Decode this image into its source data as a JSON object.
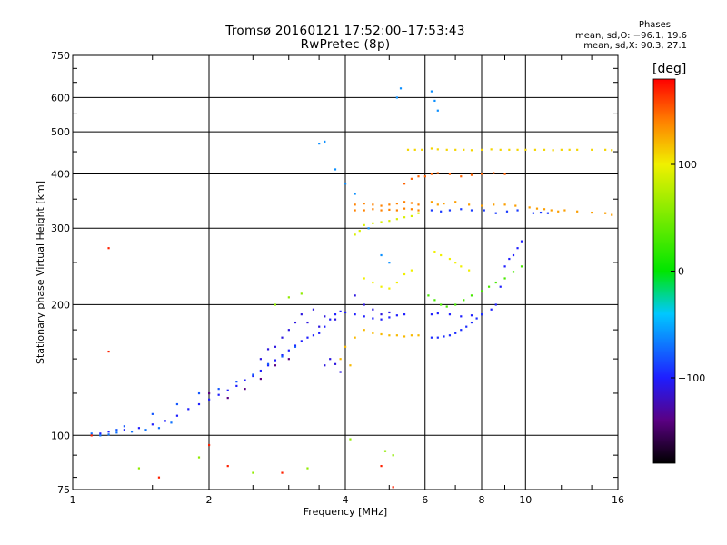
{
  "chart_data": {
    "type": "scatter",
    "title": "Tromsø 20160121 17:52:00–17:53:43",
    "subtitle": "RwPretec (8p)",
    "xlabel": "Frequency [MHz]",
    "ylabel": "Stationary phase Virtual Height [km]",
    "x_scale": "log",
    "y_scale": "log",
    "xlim": [
      1,
      16
    ],
    "ylim": [
      75,
      750
    ],
    "x_ticks": [
      1,
      2,
      4,
      6,
      8,
      10,
      16
    ],
    "x_tick_labels": [
      "1",
      "2",
      "4",
      "6",
      "8",
      "10",
      "16"
    ],
    "y_ticks": [
      75,
      100,
      200,
      300,
      400,
      500,
      600,
      750
    ],
    "y_tick_labels": [
      "75",
      "100",
      "200",
      "300",
      "400",
      "500",
      "600",
      "750"
    ],
    "x_gridlines": [
      2,
      4,
      6,
      8,
      10
    ],
    "y_gridlines": [
      100,
      200,
      300,
      400,
      500,
      600
    ],
    "phase_stats": {
      "heading": "Phases",
      "line_O": "mean, sd,O: −96.1, 19.6",
      "line_X": "mean, sd,X:  90.3, 27.1"
    },
    "colorbar": {
      "unit": "[deg]",
      "range": [
        -180,
        180
      ],
      "tick_labels": [
        "100",
        "0",
        "−100"
      ],
      "tick_values": [
        100,
        0,
        -100
      ],
      "colors": [
        "#000000",
        "#5a0082",
        "#1e1eff",
        "#00c8ff",
        "#00e600",
        "#f0f000",
        "#ff8200",
        "#ff0000"
      ]
    },
    "series": [
      {
        "points": [
          [
            1.15,
            101
          ],
          [
            1.2,
            102
          ],
          [
            1.3,
            103
          ],
          [
            1.4,
            104
          ],
          [
            1.5,
            106
          ],
          [
            1.6,
            108
          ],
          [
            1.7,
            111
          ],
          [
            1.8,
            115
          ],
          [
            1.9,
            118
          ],
          [
            2.0,
            121
          ],
          [
            2.1,
            124
          ],
          [
            2.2,
            127
          ],
          [
            2.3,
            130
          ],
          [
            2.4,
            134
          ],
          [
            2.5,
            137
          ],
          [
            2.6,
            141
          ],
          [
            2.7,
            145
          ],
          [
            2.8,
            149
          ],
          [
            2.9,
            153
          ],
          [
            3.0,
            157
          ],
          [
            3.1,
            161
          ],
          [
            3.2,
            165
          ],
          [
            3.3,
            168
          ],
          [
            3.4,
            170
          ],
          [
            3.5,
            172
          ],
          [
            3.6,
            178
          ],
          [
            3.7,
            185
          ],
          [
            3.8,
            190
          ],
          [
            3.9,
            193
          ],
          [
            4.0,
            192
          ],
          [
            4.2,
            190
          ],
          [
            4.4,
            188
          ],
          [
            4.6,
            186
          ],
          [
            4.8,
            185
          ],
          [
            5.0,
            187
          ],
          [
            5.2,
            189
          ],
          [
            5.4,
            190
          ],
          [
            6.2,
            190
          ],
          [
            6.4,
            191
          ],
          [
            6.8,
            190
          ],
          [
            7.2,
            188
          ],
          [
            7.6,
            189
          ],
          [
            8.0,
            190
          ],
          [
            8.4,
            195
          ],
          [
            8.6,
            200
          ],
          [
            8.8,
            220
          ],
          [
            9.0,
            245
          ],
          [
            9.2,
            255
          ],
          [
            9.4,
            260
          ],
          [
            9.6,
            270
          ],
          [
            9.8,
            280
          ]
        ],
        "phase": -100
      },
      {
        "points": [
          [
            3.4,
            195
          ],
          [
            3.6,
            188
          ],
          [
            3.8,
            185
          ],
          [
            3.5,
            178
          ],
          [
            3.3,
            182
          ],
          [
            3.2,
            190
          ],
          [
            3.1,
            182
          ],
          [
            3.0,
            175
          ],
          [
            2.9,
            168
          ],
          [
            2.8,
            160
          ],
          [
            2.7,
            158
          ],
          [
            2.6,
            150
          ],
          [
            3.7,
            150
          ],
          [
            3.8,
            146
          ],
          [
            3.9,
            140
          ],
          [
            3.6,
            145
          ],
          [
            4.2,
            210
          ],
          [
            4.4,
            200
          ],
          [
            4.6,
            195
          ],
          [
            4.8,
            190
          ],
          [
            5.0,
            192
          ]
        ],
        "phase": -110
      },
      {
        "points": [
          [
            4.6,
            172
          ],
          [
            4.8,
            171
          ],
          [
            5.0,
            170
          ],
          [
            5.2,
            170
          ],
          [
            5.4,
            169
          ],
          [
            5.6,
            170
          ],
          [
            5.8,
            170
          ],
          [
            4.4,
            175
          ],
          [
            4.2,
            168
          ],
          [
            4.0,
            160
          ],
          [
            3.9,
            150
          ],
          [
            4.1,
            145
          ]
        ],
        "phase": 120
      },
      {
        "points": [
          [
            6.2,
            168
          ],
          [
            6.4,
            168
          ],
          [
            6.6,
            169
          ],
          [
            6.8,
            170
          ],
          [
            7.0,
            172
          ],
          [
            7.2,
            175
          ],
          [
            7.4,
            178
          ],
          [
            7.6,
            182
          ],
          [
            7.8,
            186
          ],
          [
            8.0,
            190
          ]
        ],
        "phase": -95
      },
      {
        "points": [
          [
            4.2,
            340
          ],
          [
            4.4,
            342
          ],
          [
            4.6,
            340
          ],
          [
            4.8,
            338
          ],
          [
            5.0,
            340
          ],
          [
            5.2,
            342
          ],
          [
            5.4,
            345
          ],
          [
            5.6,
            343
          ],
          [
            5.8,
            340
          ],
          [
            4.2,
            330
          ],
          [
            4.4,
            330
          ],
          [
            4.6,
            332
          ],
          [
            4.8,
            330
          ],
          [
            5.0,
            331
          ],
          [
            5.2,
            330
          ],
          [
            5.4,
            333
          ],
          [
            5.6,
            332
          ],
          [
            5.8,
            330
          ]
        ],
        "phase": 140
      },
      {
        "points": [
          [
            4.4,
            305
          ],
          [
            4.6,
            308
          ],
          [
            4.8,
            310
          ],
          [
            5.0,
            312
          ],
          [
            5.2,
            315
          ],
          [
            5.4,
            318
          ],
          [
            5.6,
            320
          ],
          [
            5.8,
            325
          ],
          [
            4.2,
            290
          ],
          [
            4.3,
            296
          ]
        ],
        "phase": 90
      },
      {
        "points": [
          [
            5.5,
            455
          ],
          [
            5.7,
            455
          ],
          [
            5.9,
            455
          ],
          [
            6.2,
            458
          ],
          [
            6.4,
            456
          ],
          [
            6.7,
            455
          ],
          [
            7.0,
            455
          ],
          [
            7.3,
            455
          ],
          [
            7.6,
            454
          ],
          [
            8.0,
            455
          ],
          [
            8.4,
            456
          ],
          [
            8.8,
            455
          ],
          [
            9.2,
            455
          ],
          [
            9.6,
            455
          ],
          [
            10.0,
            455
          ],
          [
            10.5,
            455
          ],
          [
            11.0,
            455
          ],
          [
            11.5,
            454
          ],
          [
            12,
            455
          ],
          [
            12.5,
            455
          ],
          [
            13,
            455
          ],
          [
            14,
            455
          ],
          [
            15,
            455
          ],
          [
            15.5,
            454
          ]
        ],
        "phase": 110
      },
      {
        "points": [
          [
            6.2,
            345
          ],
          [
            6.4,
            340
          ],
          [
            6.6,
            342
          ],
          [
            7.0,
            345
          ],
          [
            7.5,
            340
          ],
          [
            8.0,
            338
          ],
          [
            8.5,
            340
          ],
          [
            9.0,
            340
          ],
          [
            9.5,
            338
          ],
          [
            10.2,
            335
          ],
          [
            10.6,
            333
          ],
          [
            11.0,
            332
          ],
          [
            11.4,
            330
          ],
          [
            11.8,
            328
          ],
          [
            12.2,
            330
          ],
          [
            13,
            328
          ],
          [
            14,
            326
          ],
          [
            15,
            325
          ],
          [
            15.5,
            322
          ]
        ],
        "phase": 130
      },
      {
        "points": [
          [
            6.2,
            330
          ],
          [
            6.5,
            328
          ],
          [
            6.8,
            330
          ],
          [
            7.2,
            332
          ],
          [
            7.6,
            330
          ],
          [
            8.1,
            330
          ],
          [
            8.6,
            325
          ],
          [
            9.1,
            328
          ],
          [
            9.6,
            330
          ],
          [
            10.4,
            325
          ],
          [
            10.8,
            326
          ],
          [
            11.2,
            325
          ]
        ],
        "phase": -90
      },
      {
        "points": [
          [
            4.4,
            230
          ],
          [
            4.6,
            225
          ],
          [
            4.8,
            220
          ],
          [
            5.0,
            218
          ],
          [
            5.2,
            225
          ],
          [
            5.4,
            235
          ],
          [
            5.6,
            240
          ],
          [
            6.3,
            265
          ],
          [
            6.5,
            260
          ],
          [
            6.8,
            255
          ],
          [
            7.0,
            250
          ],
          [
            7.2,
            245
          ],
          [
            7.5,
            240
          ]
        ],
        "phase": 100
      },
      {
        "points": [
          [
            6.1,
            210
          ],
          [
            6.3,
            205
          ],
          [
            6.5,
            200
          ],
          [
            6.7,
            198
          ],
          [
            7.0,
            200
          ],
          [
            7.3,
            205
          ],
          [
            7.6,
            210
          ],
          [
            8.0,
            215
          ],
          [
            8.3,
            220
          ],
          [
            8.6,
            225
          ],
          [
            9.0,
            230
          ],
          [
            9.4,
            238
          ],
          [
            9.8,
            245
          ]
        ],
        "phase": 30
      },
      {
        "points": [
          [
            1.9,
            125
          ],
          [
            2.1,
            128
          ],
          [
            2.3,
            133
          ],
          [
            2.5,
            138
          ],
          [
            2.7,
            146
          ],
          [
            2.9,
            152
          ],
          [
            3.1,
            160
          ],
          [
            1.7,
            118
          ],
          [
            1.5,
            112
          ],
          [
            1.3,
            105
          ],
          [
            1.25,
            103
          ]
        ],
        "phase": -80
      },
      {
        "points": [
          [
            1.1,
            101
          ],
          [
            1.15,
            100
          ],
          [
            1.2,
            100.5
          ],
          [
            1.25,
            101.5
          ],
          [
            1.35,
            102
          ],
          [
            1.45,
            103
          ],
          [
            1.55,
            104
          ],
          [
            1.65,
            107
          ]
        ],
        "phase": -70
      },
      {
        "points": [
          [
            2.0,
            125
          ],
          [
            2.2,
            122
          ],
          [
            2.4,
            128
          ],
          [
            2.6,
            135
          ],
          [
            2.8,
            145
          ],
          [
            3.0,
            150
          ]
        ],
        "phase": -140
      },
      {
        "points": [
          [
            3.0,
            208
          ],
          [
            3.2,
            212
          ],
          [
            2.8,
            200
          ],
          [
            1.4,
            84
          ],
          [
            1.9,
            89
          ],
          [
            2.5,
            82
          ],
          [
            3.3,
            84
          ],
          [
            4.1,
            98
          ],
          [
            4.9,
            92
          ],
          [
            5.1,
            90
          ]
        ],
        "phase": 60
      },
      {
        "points": [
          [
            1.2,
            270
          ],
          [
            1.2,
            156
          ],
          [
            1.1,
            100
          ],
          [
            1.55,
            80
          ],
          [
            2.0,
            95
          ],
          [
            2.2,
            85
          ],
          [
            2.9,
            82
          ],
          [
            4.8,
            85
          ],
          [
            5.1,
            76
          ]
        ],
        "phase": 170
      },
      {
        "points": [
          [
            5.2,
            600
          ],
          [
            5.3,
            630
          ],
          [
            6.2,
            620
          ],
          [
            6.3,
            590
          ],
          [
            6.4,
            560
          ],
          [
            3.5,
            470
          ],
          [
            3.6,
            475
          ],
          [
            3.8,
            410
          ],
          [
            4.0,
            380
          ],
          [
            4.2,
            360
          ],
          [
            4.5,
            300
          ],
          [
            4.8,
            260
          ],
          [
            5.0,
            250
          ]
        ],
        "phase": -60
      },
      {
        "points": [
          [
            5.4,
            380
          ],
          [
            5.6,
            390
          ],
          [
            5.8,
            395
          ],
          [
            6.0,
            395
          ],
          [
            6.2,
            400
          ],
          [
            6.4,
            402
          ],
          [
            6.8,
            400
          ],
          [
            7.2,
            395
          ],
          [
            7.6,
            398
          ],
          [
            8.0,
            400
          ],
          [
            8.5,
            402
          ],
          [
            9.0,
            400
          ]
        ],
        "phase": 150
      }
    ]
  }
}
